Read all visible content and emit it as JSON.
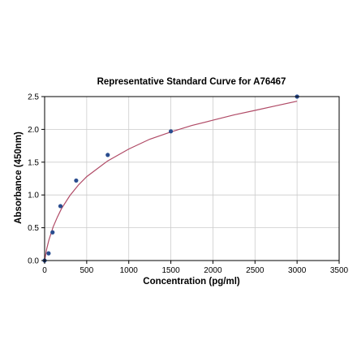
{
  "chart_data": {
    "type": "scatter",
    "title": "Representative Standard Curve for A76467",
    "xlabel": "Concentration (pg/ml)",
    "ylabel": "Absorbance (450nm)",
    "xlim": [
      0,
      3500
    ],
    "ylim": [
      0,
      2.5
    ],
    "xticks": [
      0,
      500,
      1000,
      1500,
      2000,
      2500,
      3000,
      3500
    ],
    "yticks": [
      0.0,
      0.5,
      1.0,
      1.5,
      2.0,
      2.5
    ],
    "xtick_labels": [
      "0",
      "500",
      "1000",
      "1500",
      "2000",
      "2500",
      "3000",
      "3500"
    ],
    "ytick_labels": [
      "0.0",
      "0.5",
      "1.0",
      "1.5",
      "2.0",
      "2.5"
    ],
    "grid": true,
    "series": [
      {
        "kind": "points",
        "x": [
          0,
          47,
          94,
          188,
          375,
          750,
          1500,
          3000
        ],
        "y": [
          0.0,
          0.11,
          0.43,
          0.83,
          1.22,
          1.61,
          1.97,
          2.5
        ]
      },
      {
        "kind": "fitted-curve",
        "x": [
          0,
          25,
          50,
          100,
          150,
          200,
          300,
          400,
          500,
          750,
          1000,
          1250,
          1500,
          1750,
          2000,
          2250,
          2500,
          2750,
          3000
        ],
        "y": [
          0.0,
          0.18,
          0.31,
          0.51,
          0.66,
          0.79,
          0.99,
          1.15,
          1.28,
          1.52,
          1.7,
          1.85,
          1.96,
          2.06,
          2.14,
          2.22,
          2.29,
          2.36,
          2.43
        ]
      }
    ],
    "colors": {
      "points": "#2a4d8f",
      "curve": "#b04a66",
      "grid": "#cccccc",
      "axis": "#000000"
    }
  }
}
